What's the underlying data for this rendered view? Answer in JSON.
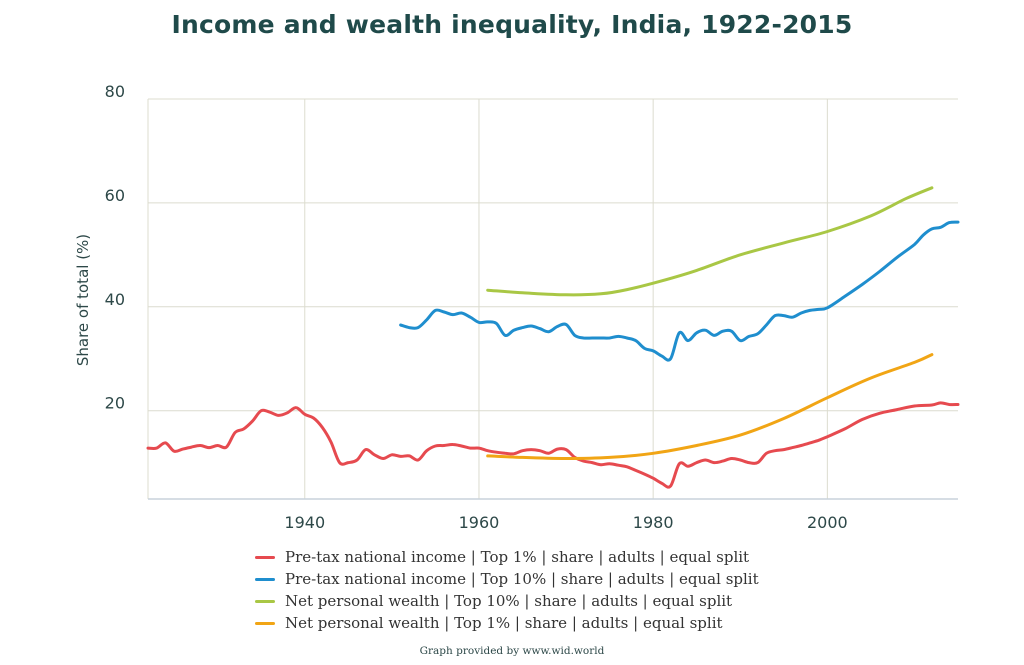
{
  "chart_data": {
    "type": "line",
    "title": "Income and wealth inequality, India, 1922-2015",
    "ylabel": "Share of total (%)",
    "xlabel": "",
    "xlim": [
      1922,
      2015
    ],
    "ylim": [
      3,
      80
    ],
    "x_ticks": [
      1940,
      1960,
      1980,
      2000
    ],
    "y_ticks": [
      20,
      40,
      60,
      80
    ],
    "grid": true,
    "legend_position": "bottom",
    "series": [
      {
        "name": "Pre-tax national income | Top 1% | share | adults | equal split",
        "color": "#e64a4f",
        "points": [
          [
            1922,
            12.8
          ],
          [
            1923,
            12.8
          ],
          [
            1924,
            13.8
          ],
          [
            1925,
            12.2
          ],
          [
            1926,
            12.6
          ],
          [
            1927,
            13.0
          ],
          [
            1928,
            13.3
          ],
          [
            1929,
            12.9
          ],
          [
            1930,
            13.3
          ],
          [
            1931,
            13.0
          ],
          [
            1932,
            15.8
          ],
          [
            1933,
            16.5
          ],
          [
            1934,
            18.0
          ],
          [
            1935,
            20.0
          ],
          [
            1936,
            19.7
          ],
          [
            1937,
            19.1
          ],
          [
            1938,
            19.6
          ],
          [
            1939,
            20.6
          ],
          [
            1940,
            19.3
          ],
          [
            1941,
            18.6
          ],
          [
            1942,
            16.8
          ],
          [
            1943,
            14.0
          ],
          [
            1944,
            10.0
          ],
          [
            1945,
            10.0
          ],
          [
            1946,
            10.5
          ],
          [
            1947,
            12.5
          ],
          [
            1948,
            11.5
          ],
          [
            1949,
            10.8
          ],
          [
            1950,
            11.5
          ],
          [
            1951,
            11.2
          ],
          [
            1952,
            11.3
          ],
          [
            1953,
            10.5
          ],
          [
            1954,
            12.3
          ],
          [
            1955,
            13.2
          ],
          [
            1956,
            13.3
          ],
          [
            1957,
            13.5
          ],
          [
            1958,
            13.2
          ],
          [
            1959,
            12.8
          ],
          [
            1960,
            12.8
          ],
          [
            1961,
            12.3
          ],
          [
            1962,
            12.0
          ],
          [
            1963,
            11.8
          ],
          [
            1964,
            11.7
          ],
          [
            1965,
            12.3
          ],
          [
            1966,
            12.5
          ],
          [
            1967,
            12.3
          ],
          [
            1968,
            11.8
          ],
          [
            1969,
            12.6
          ],
          [
            1970,
            12.5
          ],
          [
            1971,
            11.0
          ],
          [
            1972,
            10.3
          ],
          [
            1973,
            10.0
          ],
          [
            1974,
            9.6
          ],
          [
            1975,
            9.8
          ],
          [
            1976,
            9.5
          ],
          [
            1977,
            9.2
          ],
          [
            1978,
            8.5
          ],
          [
            1979,
            7.8
          ],
          [
            1980,
            7.0
          ],
          [
            1981,
            6.0
          ],
          [
            1982,
            5.5
          ],
          [
            1983,
            9.8
          ],
          [
            1984,
            9.3
          ],
          [
            1985,
            10.0
          ],
          [
            1986,
            10.5
          ],
          [
            1987,
            10.0
          ],
          [
            1988,
            10.3
          ],
          [
            1989,
            10.8
          ],
          [
            1990,
            10.5
          ],
          [
            1991,
            10.0
          ],
          [
            1992,
            10.0
          ],
          [
            1993,
            11.8
          ],
          [
            1994,
            12.3
          ],
          [
            1995,
            12.5
          ],
          [
            1996,
            12.9
          ],
          [
            1997,
            13.3
          ],
          [
            1998,
            13.8
          ],
          [
            1999,
            14.3
          ],
          [
            2000,
            15.0
          ],
          [
            2002,
            16.5
          ],
          [
            2004,
            18.3
          ],
          [
            2006,
            19.5
          ],
          [
            2008,
            20.2
          ],
          [
            2010,
            20.9
          ],
          [
            2012,
            21.1
          ],
          [
            2013,
            21.5
          ],
          [
            2014,
            21.2
          ],
          [
            2015,
            21.2
          ]
        ]
      },
      {
        "name": "Pre-tax national income | Top 10% | share | adults | equal split",
        "color": "#1f8ece",
        "points": [
          [
            1951,
            36.5
          ],
          [
            1952,
            36.0
          ],
          [
            1953,
            36.0
          ],
          [
            1954,
            37.5
          ],
          [
            1955,
            39.3
          ],
          [
            1956,
            39.0
          ],
          [
            1957,
            38.5
          ],
          [
            1958,
            38.8
          ],
          [
            1959,
            38.0
          ],
          [
            1960,
            37.0
          ],
          [
            1961,
            37.1
          ],
          [
            1962,
            36.8
          ],
          [
            1963,
            34.5
          ],
          [
            1964,
            35.5
          ],
          [
            1965,
            36.0
          ],
          [
            1966,
            36.3
          ],
          [
            1967,
            35.8
          ],
          [
            1968,
            35.2
          ],
          [
            1969,
            36.2
          ],
          [
            1970,
            36.6
          ],
          [
            1971,
            34.5
          ],
          [
            1972,
            34.0
          ],
          [
            1973,
            34.0
          ],
          [
            1974,
            34.0
          ],
          [
            1975,
            34.0
          ],
          [
            1976,
            34.3
          ],
          [
            1977,
            34.0
          ],
          [
            1978,
            33.5
          ],
          [
            1979,
            32.0
          ],
          [
            1980,
            31.5
          ],
          [
            1981,
            30.5
          ],
          [
            1982,
            30.0
          ],
          [
            1983,
            35.0
          ],
          [
            1984,
            33.5
          ],
          [
            1985,
            35.0
          ],
          [
            1986,
            35.5
          ],
          [
            1987,
            34.5
          ],
          [
            1988,
            35.3
          ],
          [
            1989,
            35.3
          ],
          [
            1990,
            33.5
          ],
          [
            1991,
            34.3
          ],
          [
            1992,
            34.8
          ],
          [
            1993,
            36.5
          ],
          [
            1994,
            38.3
          ],
          [
            1995,
            38.3
          ],
          [
            1996,
            38.0
          ],
          [
            1997,
            38.8
          ],
          [
            1998,
            39.3
          ],
          [
            1999,
            39.5
          ],
          [
            2000,
            39.8
          ],
          [
            2002,
            42.0
          ],
          [
            2004,
            44.3
          ],
          [
            2006,
            46.8
          ],
          [
            2008,
            49.5
          ],
          [
            2010,
            52.0
          ],
          [
            2011,
            53.8
          ],
          [
            2012,
            55.0
          ],
          [
            2013,
            55.3
          ],
          [
            2014,
            56.2
          ],
          [
            2015,
            56.3
          ]
        ]
      },
      {
        "name": "Net personal wealth | Top 10% | share | adults | equal split",
        "color": "#a9c745",
        "points": [
          [
            1961,
            43.2
          ],
          [
            1965,
            42.7
          ],
          [
            1970,
            42.3
          ],
          [
            1974,
            42.5
          ],
          [
            1977,
            43.3
          ],
          [
            1981,
            45.0
          ],
          [
            1985,
            47.0
          ],
          [
            1990,
            50.0
          ],
          [
            1995,
            52.3
          ],
          [
            2000,
            54.5
          ],
          [
            2005,
            57.5
          ],
          [
            2009,
            60.8
          ],
          [
            2012,
            62.9
          ]
        ]
      },
      {
        "name": "Net personal wealth | Top 1% | share | adults | equal split",
        "color": "#f1a515",
        "points": [
          [
            1961,
            11.3
          ],
          [
            1965,
            11.0
          ],
          [
            1970,
            10.8
          ],
          [
            1975,
            11.0
          ],
          [
            1980,
            11.8
          ],
          [
            1985,
            13.3
          ],
          [
            1990,
            15.3
          ],
          [
            1995,
            18.5
          ],
          [
            2000,
            22.5
          ],
          [
            2005,
            26.3
          ],
          [
            2010,
            29.3
          ],
          [
            2012,
            30.8
          ]
        ]
      }
    ],
    "footer": "Graph provided by www.wid.world"
  }
}
